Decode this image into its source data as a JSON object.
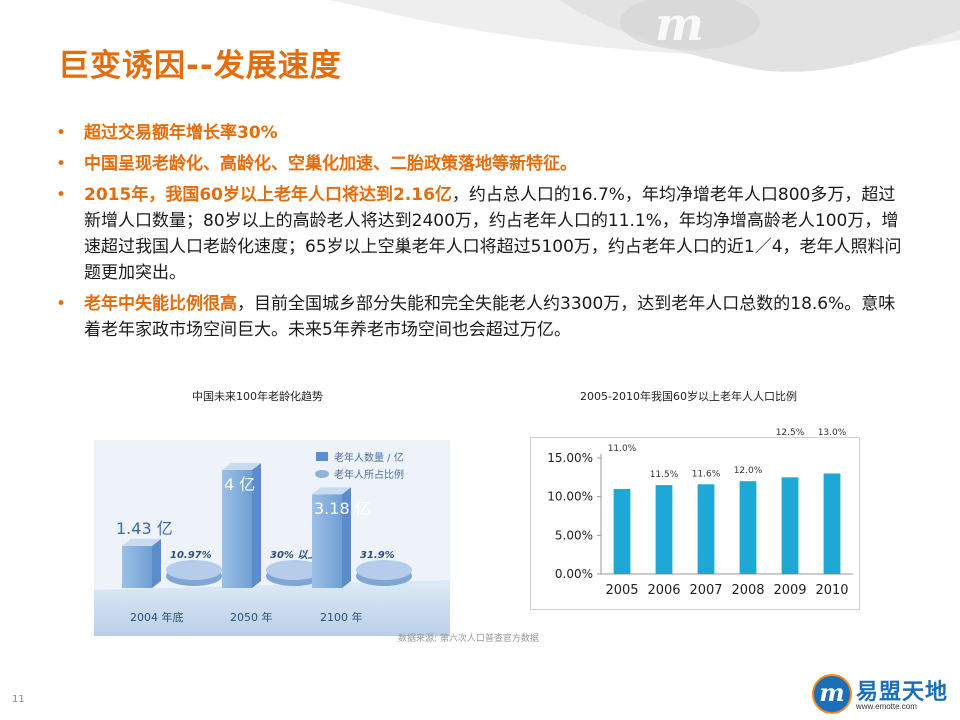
{
  "title": "巨变诱因--发展速度",
  "bullets": [
    {
      "highlight": "超过交易额年增长率30%",
      "rest": ""
    },
    {
      "highlight": "中国呈现老龄化、高龄化、空巢化加速、二胎政策落地等新特征。",
      "rest": ""
    },
    {
      "highlight": "2015年，我国60岁以上老年人口将达到2.16亿",
      "rest": "，约占总人口的16.7%，年均净增老年人口800多万，超过新增人口数量；80岁以上的高龄老人将达到2400万，约占老年人口的11.1%，年均净增高龄老人100万，增速超过我国人口老龄化速度；65岁以上空巢老年人口将超过5100万，约占老年人口的近1／4，老年人照料问题更加突出。"
    },
    {
      "highlight": "老年中失能比例很高",
      "rest": "，目前全国城乡部分失能和完全失能老人约3300万，达到老年人口总数的18.6%。意味着老年家政市场空间巨大。未来5年养老市场空间也会超过万亿。"
    }
  ],
  "left_chart": {
    "caption": "中国未来100年老龄化趋势",
    "legend": [
      "老年人数量 / 亿",
      "老年人所占比例"
    ],
    "groups": [
      {
        "year": "2004 年底",
        "count_label": "1.43 亿",
        "count": 1.43,
        "ratio_label": "10.97%"
      },
      {
        "year": "2050 年",
        "count_label": "4 亿",
        "count": 4.0,
        "ratio_label": "30% 以上"
      },
      {
        "year": "2100 年",
        "count_label": "3.18 亿",
        "count": 3.18,
        "ratio_label": "31.9%"
      }
    ]
  },
  "chart_data": {
    "type": "bar",
    "title": "2005-2010年我国60岁以上老年人人口比例",
    "categories": [
      "2005",
      "2006",
      "2007",
      "2008",
      "2009",
      "2010"
    ],
    "values": [
      11.0,
      11.5,
      11.6,
      12.0,
      12.5,
      13.0
    ],
    "data_labels": [
      "11.0%",
      "11.5%",
      "11.6%",
      "12.0%",
      "12.5%",
      "13.0%"
    ],
    "yticks": [
      "0.00%",
      "5.00%",
      "10.00%",
      "15.00%"
    ],
    "ylim": [
      0,
      15
    ],
    "grid": false,
    "bar_color": "#1ea8d6"
  },
  "source_note": "数据来源: 第六次人口普查官方数据",
  "page_number": "11",
  "logo": {
    "mark": "m",
    "name": "易盟天地",
    "url": "www.emotte.com"
  }
}
